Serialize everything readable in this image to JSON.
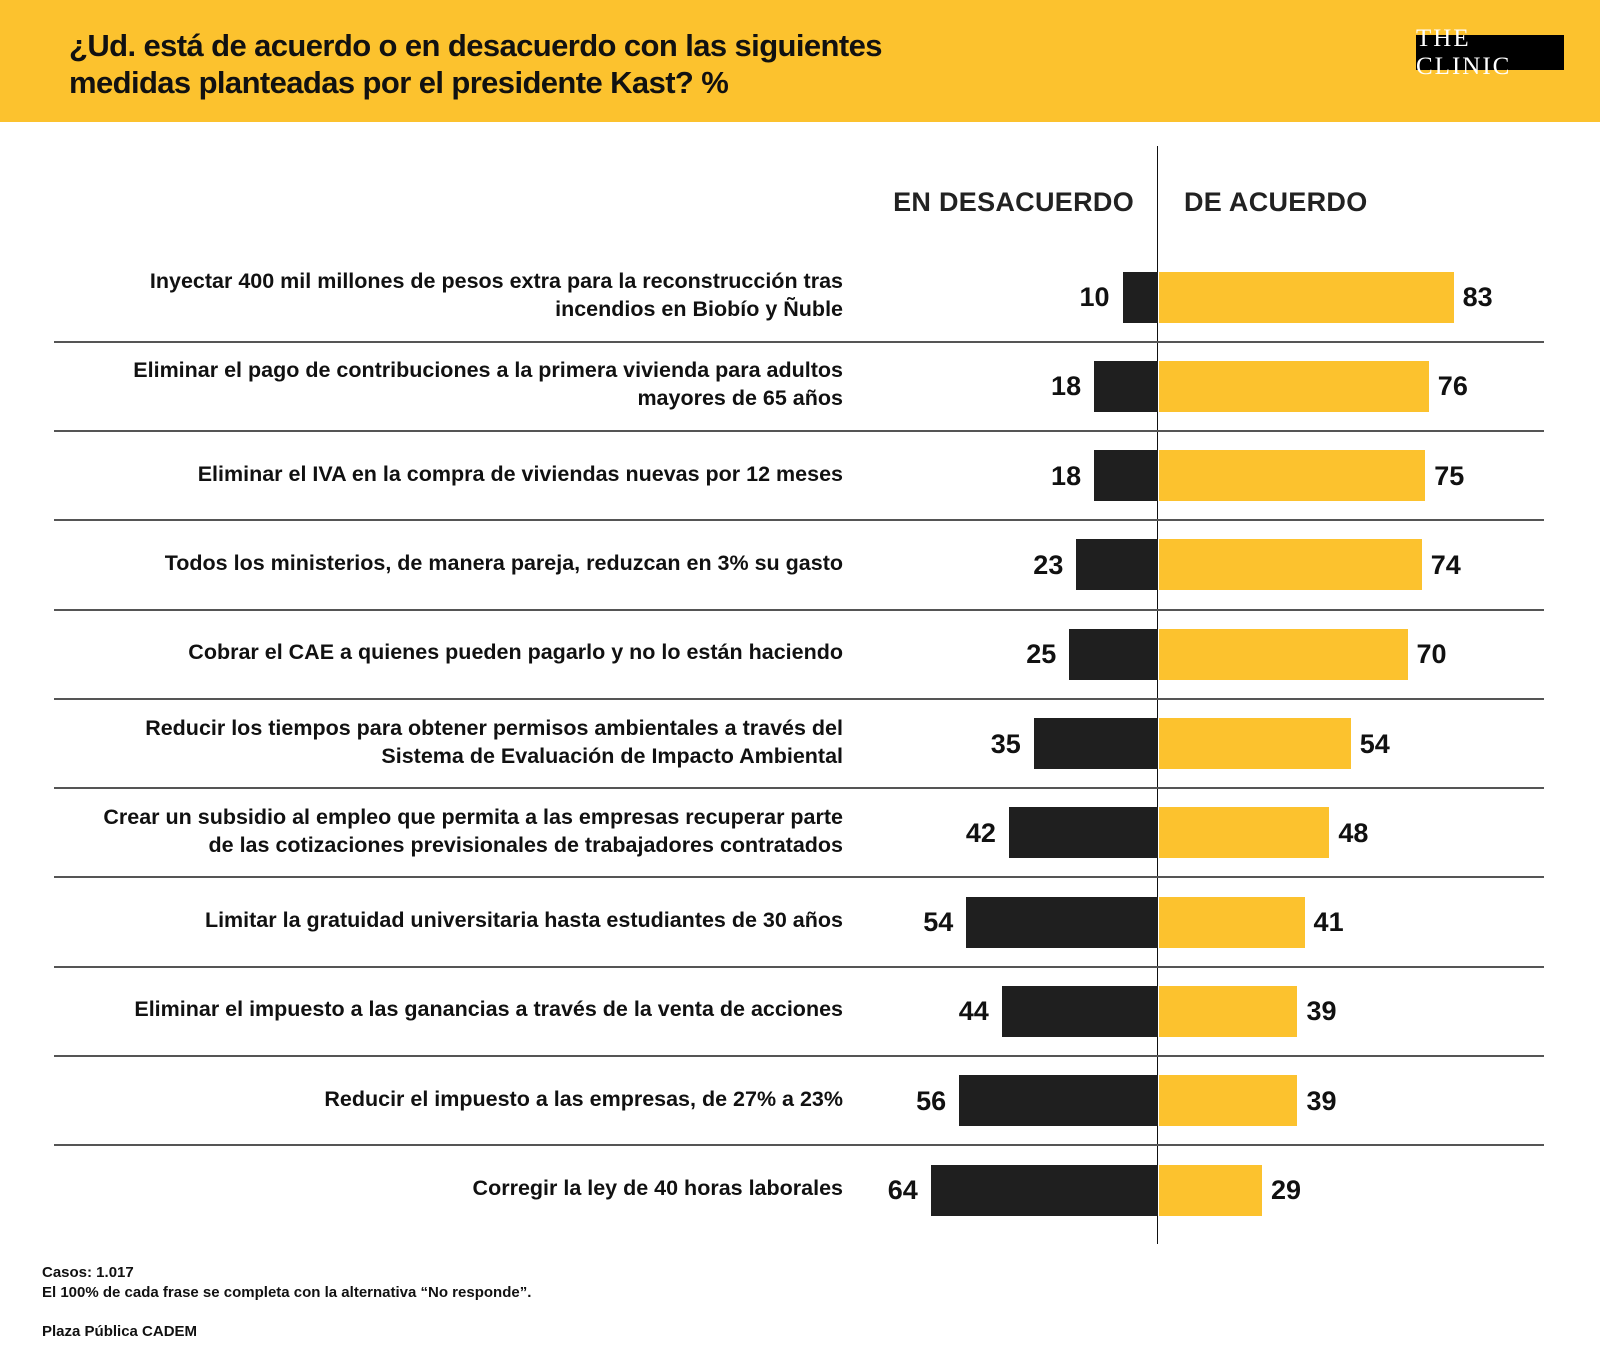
{
  "header": {
    "title_line1": "¿Ud. está de acuerdo o en desacuerdo con las siguientes",
    "title_line2": "medidas planteadas por el presidente Kast? %",
    "logo": "THE CLINIC"
  },
  "colors": {
    "accent": "#FCC22E",
    "disagree": "#1F1F1F",
    "text": "#111111"
  },
  "chart_data": {
    "type": "bar",
    "orientation": "horizontal-diverging",
    "title": "¿Ud. está de acuerdo o en desacuerdo con las siguientes medidas planteadas por el presidente Kast? %",
    "unit": "%",
    "legend": [
      "EN DESACUERDO",
      "DE ACUERDO"
    ],
    "categories": [
      "Inyectar 400 mil millones de pesos extra para la reconstrucción tras incendios en Biobío y Ñuble",
      "Eliminar el pago de contribuciones a la primera vivienda para adultos mayores de 65 años",
      "Eliminar el IVA en la compra de viviendas nuevas por 12 meses",
      "Todos los ministerios, de manera pareja, reduzcan en 3% su gasto",
      "Cobrar el CAE a quienes pueden pagarlo y no lo están haciendo",
      "Reducir los tiempos para obtener permisos ambientales a través del Sistema de Evaluación de Impacto Ambiental",
      "Crear un subsidio al empleo que permita a las empresas recuperar parte de las cotizaciones previsionales de trabajadores contratados",
      "Limitar la gratuidad universitaria hasta estudiantes de 30 años",
      "Eliminar el impuesto a las ganancias a través de la venta de acciones",
      "Reducir el impuesto a las empresas, de 27% a 23%",
      "Corregir la ley de 40 horas laborales"
    ],
    "label_lines": [
      [
        "Inyectar 400 mil millones de pesos extra para la reconstrucción tras",
        "incendios en Biobío y Ñuble"
      ],
      [
        "Eliminar el pago de contribuciones a la primera vivienda para adultos",
        "mayores de 65 años"
      ],
      [
        "Eliminar el IVA en la compra de viviendas nuevas por 12 meses"
      ],
      [
        "Todos los ministerios, de manera pareja, reduzcan en 3% su gasto"
      ],
      [
        "Cobrar el CAE a quienes pueden pagarlo y no lo están haciendo"
      ],
      [
        "Reducir los tiempos para obtener permisos ambientales a través del",
        "Sistema de Evaluación de Impacto Ambiental"
      ],
      [
        "Crear un subsidio al empleo que permita a las empresas recuperar parte",
        "de las cotizaciones previsionales de trabajadores contratados"
      ],
      [
        "Limitar la gratuidad universitaria hasta estudiantes de 30 años"
      ],
      [
        "Eliminar el impuesto a las ganancias a través de la venta de acciones"
      ],
      [
        "Reducir el impuesto a las empresas, de 27% a 23%"
      ],
      [
        "Corregir la ley de 40 horas laborales"
      ]
    ],
    "series": [
      {
        "name": "EN DESACUERDO",
        "values": [
          10,
          18,
          18,
          23,
          25,
          35,
          42,
          54,
          44,
          56,
          64
        ]
      },
      {
        "name": "DE ACUERDO",
        "values": [
          83,
          76,
          75,
          74,
          70,
          54,
          48,
          41,
          39,
          39,
          29
        ]
      }
    ],
    "xlim": [
      0,
      100
    ],
    "grid": false,
    "legend_position": "top"
  },
  "footer": {
    "cases": "Casos: 1.017",
    "note": "El 100% de cada frase se completa con la alternativa “No responde”.",
    "source": "Plaza Pública CADEM"
  }
}
